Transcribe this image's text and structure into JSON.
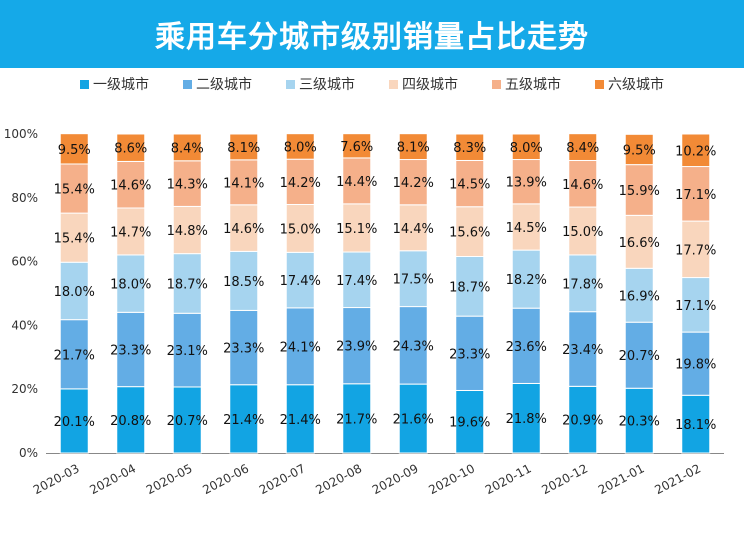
{
  "header": {
    "title": "乘用车分城市级别销量占比走势"
  },
  "chart_data": {
    "type": "bar",
    "stacked": true,
    "categories": [
      "2020-03",
      "2020-04",
      "2020-05",
      "2020-06",
      "2020-07",
      "2020-08",
      "2020-09",
      "2020-10",
      "2020-11",
      "2020-12",
      "2021-01",
      "2021-02"
    ],
    "series": [
      {
        "name": "一级城市",
        "color": "#12a4e3",
        "values": [
          20.1,
          20.8,
          20.7,
          21.4,
          21.4,
          21.7,
          21.6,
          19.6,
          21.8,
          20.9,
          20.3,
          18.1
        ],
        "labels": [
          "20.1%",
          "20.8%",
          "20.7%",
          "21.4%",
          "21.4%",
          "21.7%",
          "21.6%",
          "19.6%",
          "21.8%",
          "20.9%",
          "20.3%",
          "18.1%"
        ]
      },
      {
        "name": "二级城市",
        "color": "#63ade5",
        "values": [
          21.7,
          23.3,
          23.1,
          23.3,
          24.1,
          23.9,
          24.3,
          23.3,
          23.6,
          23.4,
          20.7,
          19.8
        ],
        "labels": [
          "21.7%",
          "23.3%",
          "23.1%",
          "23.3%",
          "24.1%",
          "23.9%",
          "24.3%",
          "23.3%",
          "23.6%",
          "23.4%",
          "20.7%",
          "19.8%"
        ]
      },
      {
        "name": "三级城市",
        "color": "#a6d4ef",
        "values": [
          18.0,
          18.0,
          18.7,
          18.5,
          17.4,
          17.4,
          17.5,
          18.7,
          18.2,
          17.8,
          16.9,
          17.1
        ],
        "labels": [
          "18.0%",
          "18.0%",
          "18.7%",
          "18.5%",
          "17.4%",
          "17.4%",
          "17.5%",
          "18.7%",
          "18.2%",
          "17.8%",
          "16.9%",
          "17.1%"
        ]
      },
      {
        "name": "四级城市",
        "color": "#f9d6bd",
        "values": [
          15.4,
          14.7,
          14.8,
          14.6,
          15.0,
          15.1,
          14.4,
          15.6,
          14.5,
          15.0,
          16.6,
          17.7
        ],
        "labels": [
          "15.4%",
          "14.7%",
          "14.8%",
          "14.6%",
          "15.0%",
          "15.1%",
          "14.4%",
          "15.6%",
          "14.5%",
          "15.0%",
          "16.6%",
          "17.7%"
        ]
      },
      {
        "name": "五级城市",
        "color": "#f5b08a",
        "values": [
          15.4,
          14.6,
          14.3,
          14.1,
          14.2,
          14.4,
          14.2,
          14.5,
          13.9,
          14.6,
          15.9,
          17.1
        ],
        "labels": [
          "15.4%",
          "14.6%",
          "14.3%",
          "14.1%",
          "14.2%",
          "14.4%",
          "14.2%",
          "14.5%",
          "13.9%",
          "14.6%",
          "15.9%",
          "17.1%"
        ]
      },
      {
        "name": "六级城市",
        "color": "#f28a36",
        "values": [
          9.5,
          8.6,
          8.4,
          8.1,
          8.0,
          7.6,
          8.1,
          8.3,
          8.0,
          8.4,
          9.5,
          10.2
        ],
        "labels": [
          "9.5%",
          "8.6%",
          "8.4%",
          "8.1%",
          "8.0%",
          "7.6%",
          "8.1%",
          "8.3%",
          "8.0%",
          "8.4%",
          "9.5%",
          "10.2%"
        ]
      }
    ],
    "yticks": [
      "0%",
      "20%",
      "40%",
      "60%",
      "80%",
      "100%"
    ],
    "ylim": [
      0,
      100
    ],
    "legend_position": "top",
    "grid": false
  }
}
